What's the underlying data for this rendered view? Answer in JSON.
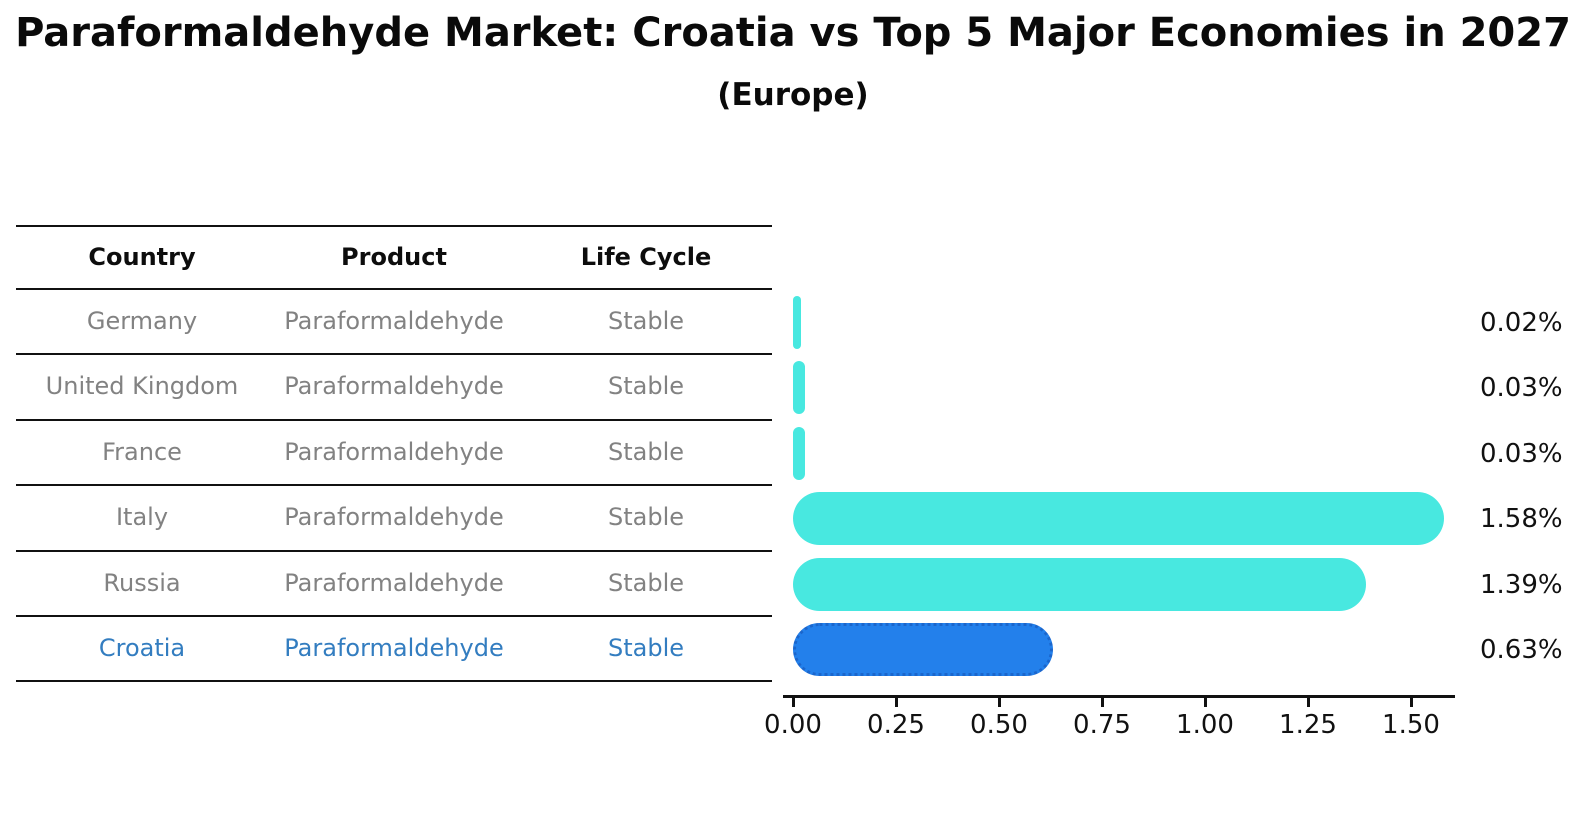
{
  "title": "Paraformaldehyde Market: Croatia vs Top 5 Major Economies in 2027",
  "subtitle": "(Europe)",
  "colors": {
    "bar_default": "#48E8E0",
    "bar_highlight": "#2380EB",
    "bar_highlight_border": "#1B66CC",
    "row_text": "#828282",
    "highlight_text": "#337DC0",
    "header_text": "#0D0D0D",
    "value_text": "#111111",
    "line": "#111111"
  },
  "table": {
    "headers": [
      "Country",
      "Product",
      "Life Cycle"
    ],
    "rows": [
      {
        "country": "Germany",
        "product": "Paraformaldehyde",
        "life_cycle": "Stable",
        "highlighted": false
      },
      {
        "country": "United Kingdom",
        "product": "Paraformaldehyde",
        "life_cycle": "Stable",
        "highlighted": false
      },
      {
        "country": "France",
        "product": "Paraformaldehyde",
        "life_cycle": "Stable",
        "highlighted": false
      },
      {
        "country": "Italy",
        "product": "Paraformaldehyde",
        "life_cycle": "Stable",
        "highlighted": false
      },
      {
        "country": "Russia",
        "product": "Paraformaldehyde",
        "life_cycle": "Stable",
        "highlighted": false
      },
      {
        "country": "Croatia",
        "product": "Paraformaldehyde",
        "life_cycle": "Stable",
        "highlighted": true
      }
    ]
  },
  "chart_data": {
    "type": "bar",
    "orientation": "horizontal",
    "title": "Paraformaldehyde Market: Croatia vs Top 5 Major Economies in 2027",
    "subtitle": "(Europe)",
    "categories": [
      "Germany",
      "United Kingdom",
      "France",
      "Italy",
      "Russia",
      "Croatia"
    ],
    "values": [
      0.02,
      0.03,
      0.03,
      1.58,
      1.39,
      0.63
    ],
    "value_labels": [
      "0.02%",
      "0.03%",
      "0.03%",
      "1.58%",
      "1.39%",
      "0.63%"
    ],
    "highlight_index": 5,
    "xlim": [
      0,
      1.6
    ],
    "xtick_labels": [
      "0.00",
      "0.25",
      "0.50",
      "0.75",
      "1.00",
      "1.25",
      "1.50"
    ],
    "grid": false,
    "legend": false
  }
}
